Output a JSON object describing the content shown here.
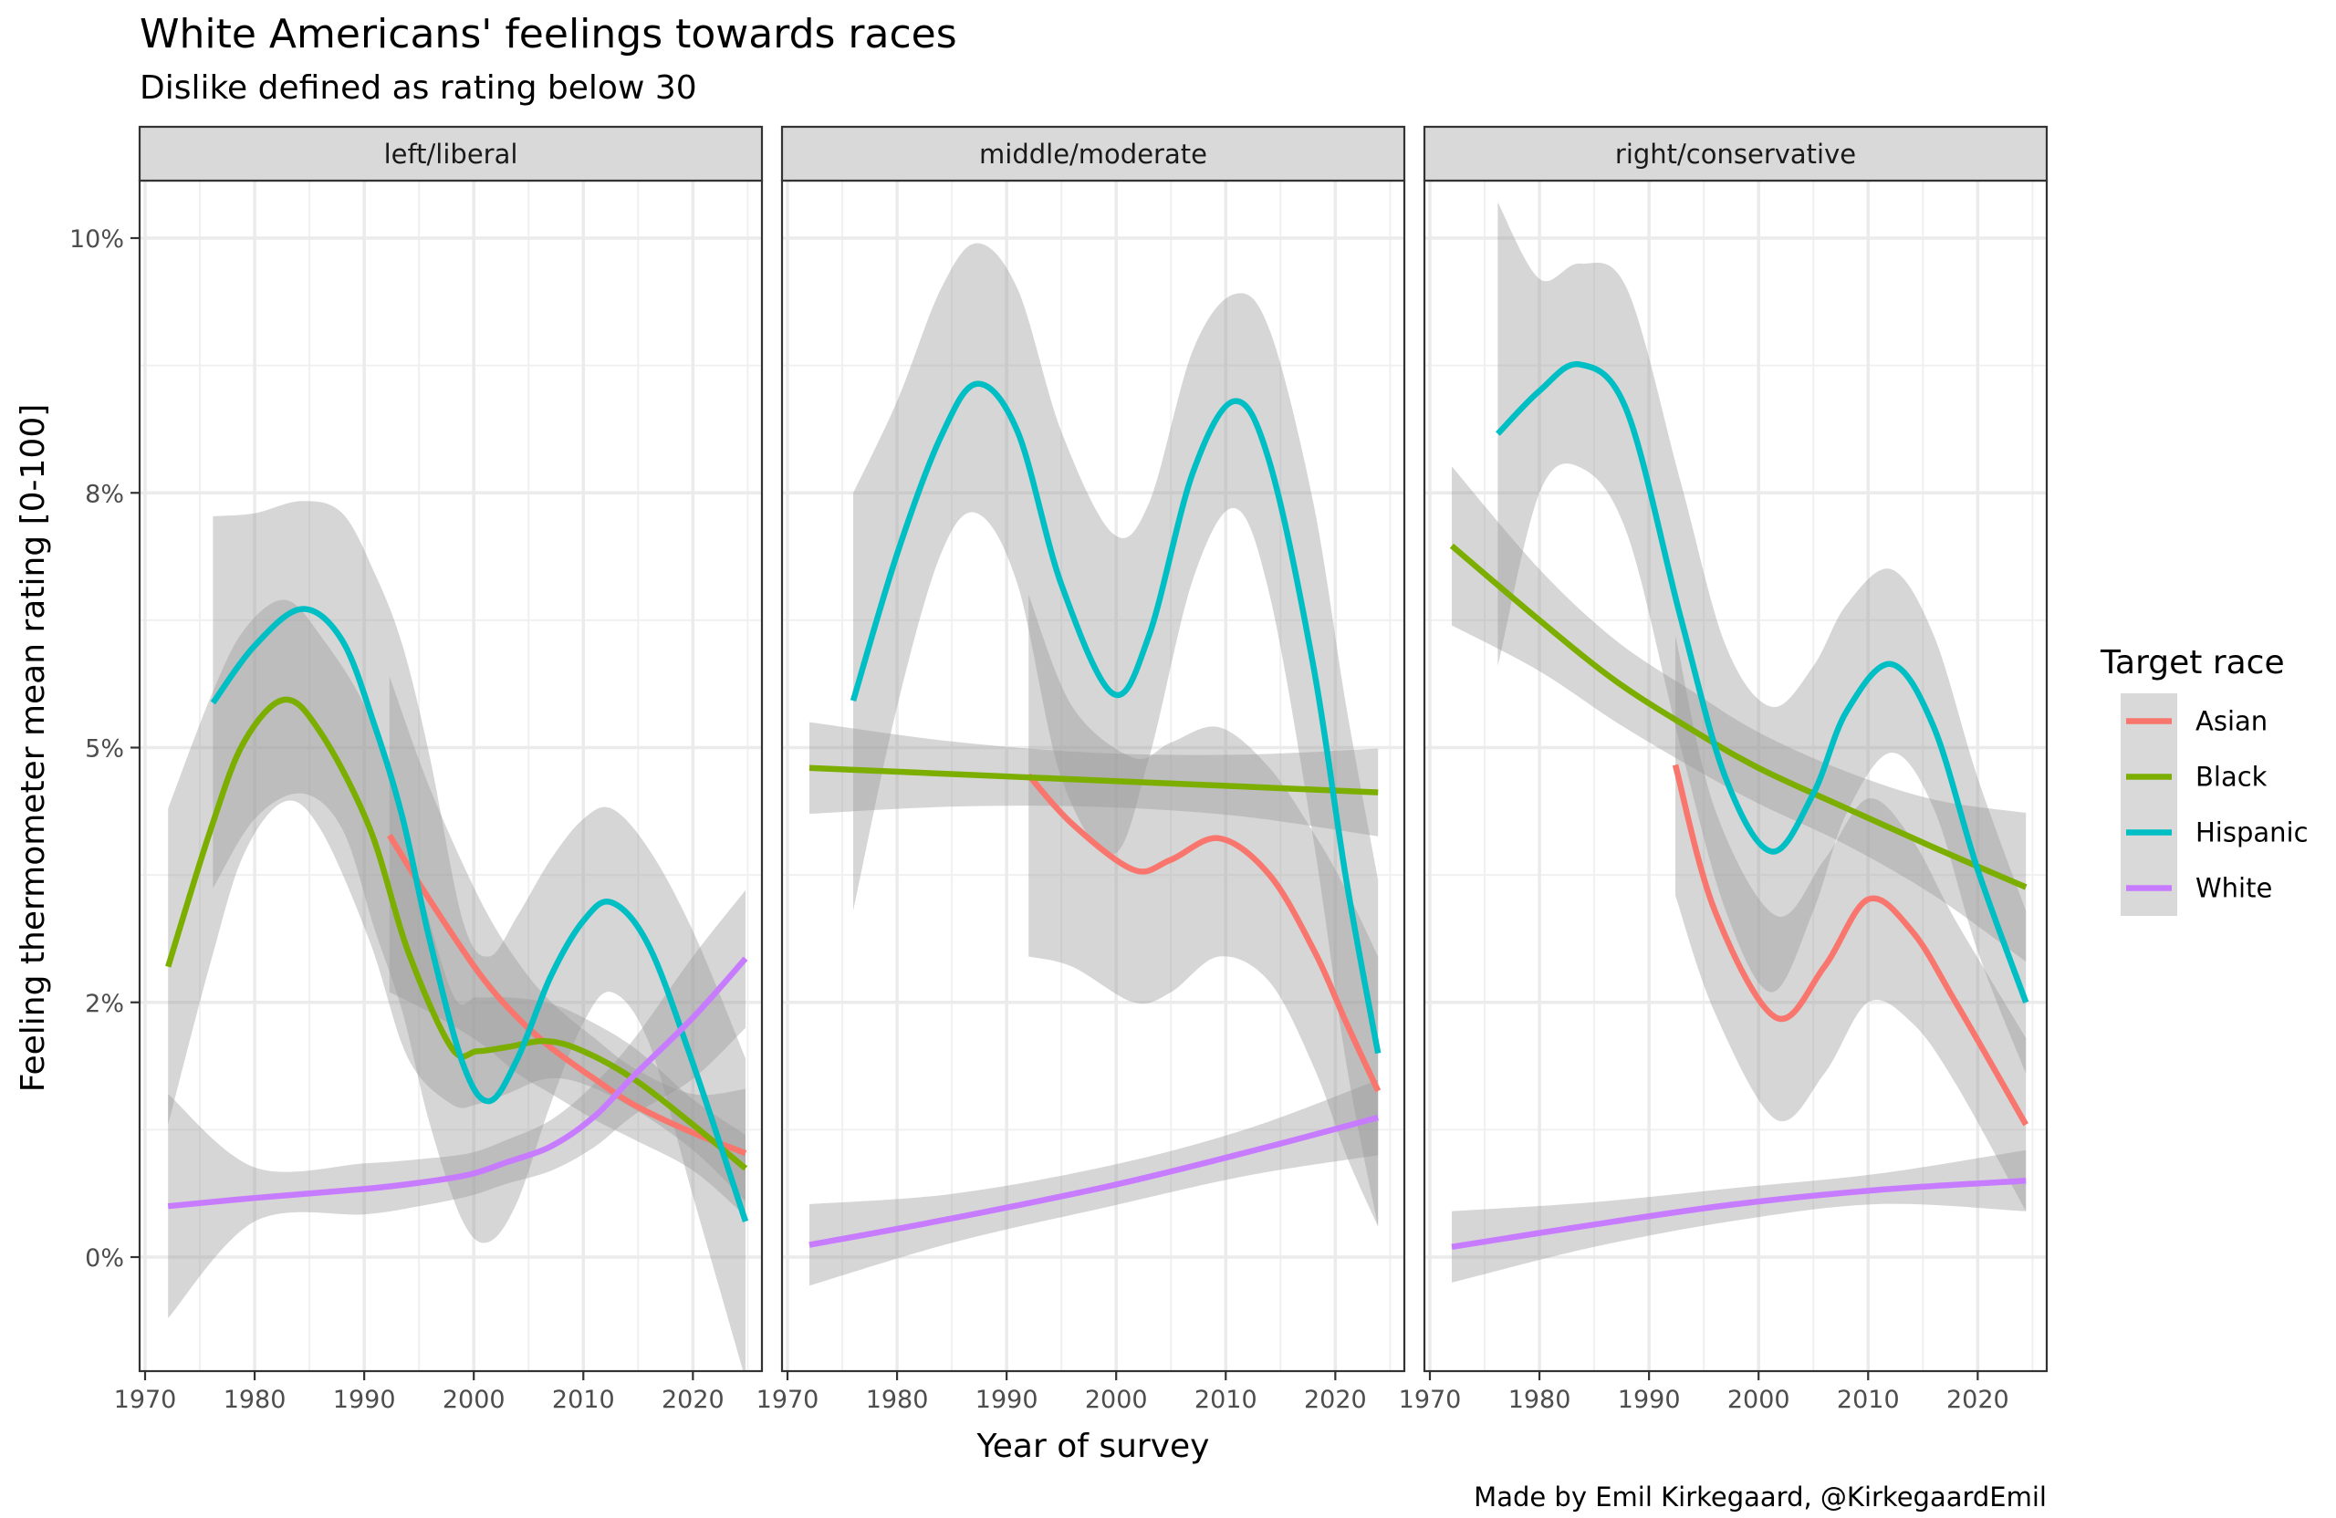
{
  "chart_data": {
    "type": "line",
    "title": "White Americans' feelings towards races",
    "subtitle": "Dislike defined as rating below 30",
    "xlabel": "Year of survey",
    "ylabel": "Feeling thermometer mean rating [0-100]",
    "caption": "Made by Emil Kirkegaard, @KirkegaardEmil",
    "xlim": [
      1969.5,
      2026.3
    ],
    "ylim": [
      -1.0,
      10.6
    ],
    "x_ticks": [
      1970,
      1980,
      1990,
      2000,
      2010,
      2020
    ],
    "x_tick_labels": [
      "1970",
      "1980",
      "1990",
      "2000",
      "2010",
      "2020"
    ],
    "y_ticks": [
      0,
      2.5,
      5,
      7.5,
      10
    ],
    "y_tick_labels": [
      "0%",
      "2%",
      "5%",
      "8%",
      "10%"
    ],
    "grid": true,
    "legend": {
      "title": "Target race",
      "position": "right",
      "entries": [
        {
          "name": "Asian",
          "color": "#F8766D"
        },
        {
          "name": "Black",
          "color": "#7CAE00"
        },
        {
          "name": "Hispanic",
          "color": "#00BFC4"
        },
        {
          "name": "White",
          "color": "#C77CFF"
        }
      ]
    },
    "ribbon_color": "#999999",
    "panels": [
      {
        "label": "left/liberal",
        "series": [
          {
            "name": "Asian",
            "x": [
              1992.3,
              1996,
              2000.6,
              2004,
              2007.1,
              2011,
              2014.7,
              2020,
              2024.8
            ],
            "y": [
              4.14,
              3.5,
              2.77,
              2.35,
              2.05,
              1.75,
              1.49,
              1.22,
              1.02
            ],
            "lower": [
              2.6,
              2.4,
              2.1,
              1.8,
              1.6,
              1.35,
              1.15,
              0.85,
              0.4
            ],
            "upper": [
              5.7,
              4.6,
              3.5,
              2.9,
              2.5,
              2.15,
              1.85,
              1.6,
              1.65
            ]
          },
          {
            "name": "Black",
            "x": [
              1972.1,
              1976,
              1979,
              1982.7,
              1986,
              1990.5,
              1994,
              1998,
              2000.3,
              2003,
              2006.6,
              2010,
              2014.7,
              2020,
              2024.8
            ],
            "y": [
              2.85,
              4.2,
              5.05,
              5.47,
              5.15,
              4.21,
              3.0,
              2.05,
              2.02,
              2.06,
              2.12,
              2.02,
              1.74,
              1.3,
              0.87
            ],
            "lower": [
              1.3,
              2.9,
              3.95,
              4.47,
              4.2,
              3.1,
              1.95,
              1.5,
              1.5,
              1.6,
              1.75,
              1.7,
              1.45,
              1.05,
              0.55
            ],
            "upper": [
              4.4,
              5.5,
              6.15,
              6.45,
              6.1,
              5.3,
              4.05,
              2.6,
              2.55,
              2.55,
              2.5,
              2.35,
              2.05,
              1.55,
              1.2
            ]
          },
          {
            "name": "Hispanic",
            "x": [
              1976.2,
              1980,
              1984.3,
              1988,
              1991,
              1993.5,
              1996,
              1999,
              2001.4,
              2004,
              2007,
              2010,
              2012.6,
              2016,
              2020,
              2024.8
            ],
            "y": [
              5.44,
              6.0,
              6.36,
              6.05,
              5.2,
              4.31,
              3.1,
              1.9,
              1.53,
              1.95,
              2.75,
              3.3,
              3.48,
              3.05,
              1.9,
              0.35
            ],
            "lower": [
              3.62,
              4.3,
              4.55,
              4.2,
              3.2,
              2.4,
              1.3,
              0.35,
              0.15,
              0.55,
              1.5,
              2.3,
              2.6,
              2.1,
              0.6,
              -1.2
            ],
            "upper": [
              7.27,
              7.3,
              7.42,
              7.3,
              6.7,
              6.0,
              4.9,
              3.3,
              2.95,
              3.35,
              3.9,
              4.3,
              4.4,
              4.0,
              3.2,
              1.95
            ]
          },
          {
            "name": "White",
            "x": [
              1972.1,
              1980,
              1990.1,
              1995,
              1999.6,
              2003,
              2007.1,
              2011,
              2014.7,
              2020,
              2024.8
            ],
            "y": [
              0.5,
              0.58,
              0.67,
              0.73,
              0.81,
              0.93,
              1.09,
              1.38,
              1.79,
              2.35,
              2.93
            ],
            "lower": [
              -0.6,
              0.35,
              0.42,
              0.5,
              0.6,
              0.72,
              0.85,
              1.08,
              1.4,
              1.75,
              2.25
            ],
            "upper": [
              1.6,
              0.88,
              0.92,
              0.96,
              1.02,
              1.15,
              1.35,
              1.7,
              2.15,
              2.95,
              3.6
            ]
          }
        ]
      },
      {
        "label": "middle/moderate",
        "series": [
          {
            "name": "Asian",
            "x": [
              1992.0,
              1996,
              2001.6,
              2005,
              2009.4,
              2014,
              2018.1,
              2021,
              2023.9
            ],
            "y": [
              4.73,
              4.25,
              3.8,
              3.9,
              4.11,
              3.75,
              3.0,
              2.3,
              1.63
            ],
            "lower": [
              2.95,
              2.85,
              2.5,
              2.6,
              2.95,
              2.7,
              1.85,
              1.0,
              0.3
            ],
            "upper": [
              6.5,
              5.4,
              4.9,
              5.05,
              5.2,
              4.8,
              4.15,
              3.6,
              2.95
            ]
          },
          {
            "name": "Black",
            "x": [
              1972.0,
              1985,
              1998,
              2011,
              2023.9
            ],
            "y": [
              4.8,
              4.74,
              4.68,
              4.62,
              4.56
            ],
            "lower": [
              4.35,
              4.42,
              4.42,
              4.33,
              4.13
            ],
            "upper": [
              5.25,
              5.06,
              4.95,
              4.93,
              4.99
            ]
          },
          {
            "name": "Hispanic",
            "x": [
              1976.0,
              1980,
              1984,
              1987.3,
              1991,
              1995,
              1999.7,
              2003,
              2007,
              2010.8,
              2014,
              2018,
              2021,
              2023.9
            ],
            "y": [
              5.46,
              6.9,
              8.05,
              8.57,
              8.1,
              6.6,
              5.53,
              6.1,
              7.7,
              8.4,
              7.8,
              5.8,
              3.7,
              2.0
            ],
            "lower": [
              3.4,
              5.4,
              6.9,
              7.3,
              6.6,
              4.7,
              3.95,
              4.9,
              6.65,
              7.35,
              6.5,
              4.1,
              1.9,
              0.3
            ],
            "upper": [
              7.5,
              8.4,
              9.5,
              9.95,
              9.5,
              8.1,
              7.1,
              7.4,
              8.9,
              9.45,
              9.1,
              7.4,
              5.4,
              3.7
            ]
          },
          {
            "name": "White",
            "x": [
              1972.0,
              1985,
              1999.5,
              2012,
              2023.9
            ],
            "y": [
              0.12,
              0.38,
              0.7,
              1.03,
              1.37
            ],
            "lower": [
              -0.28,
              0.14,
              0.5,
              0.8,
              1.0
            ],
            "upper": [
              0.52,
              0.62,
              0.9,
              1.26,
              1.74
            ]
          }
        ]
      },
      {
        "label": "right/conservative",
        "series": [
          {
            "name": "Asian",
            "x": [
              1992.4,
              1996,
              2001.6,
              2006,
              2010,
              2014,
              2018,
              2024.4
            ],
            "y": [
              4.83,
              3.4,
              2.35,
              2.85,
              3.51,
              3.2,
              2.5,
              1.3
            ],
            "lower": [
              3.55,
              2.4,
              1.35,
              1.8,
              2.5,
              2.3,
              1.7,
              0.45
            ],
            "upper": [
              6.1,
              4.4,
              3.35,
              3.9,
              4.5,
              4.1,
              3.3,
              2.15
            ]
          },
          {
            "name": "Black",
            "x": [
              1972.0,
              1980,
              1987,
              1994.0,
              2000,
              2007.9,
              2016,
              2024.4
            ],
            "y": [
              6.98,
              6.25,
              5.65,
              5.17,
              4.8,
              4.41,
              4.02,
              3.63
            ],
            "lower": [
              6.2,
              5.75,
              5.25,
              4.8,
              4.45,
              4.05,
              3.55,
              2.9
            ],
            "upper": [
              7.76,
              6.75,
              6.05,
              5.55,
              5.15,
              4.77,
              4.49,
              4.36
            ]
          },
          {
            "name": "Hispanic",
            "x": [
              1976.2,
              1980,
              1983.7,
              1988,
              1992.9,
              1997,
              2001.2,
              2005,
              2008,
              2012.1,
              2016,
              2020,
              2024.4
            ],
            "y": [
              8.08,
              8.5,
              8.76,
              8.3,
              6.27,
              4.7,
              3.98,
              4.55,
              5.35,
              5.82,
              5.2,
              3.8,
              2.5
            ],
            "lower": [
              5.8,
              7.5,
              7.75,
              7.1,
              5.0,
              3.4,
              2.6,
              3.4,
              4.35,
              4.95,
              4.4,
              3.0,
              1.8
            ],
            "upper": [
              10.35,
              9.6,
              9.75,
              9.5,
              7.6,
              6.0,
              5.4,
              5.8,
              6.4,
              6.75,
              6.1,
              4.7,
              3.4
            ]
          },
          {
            "name": "White",
            "x": [
              1972.0,
              1985,
              1998,
              2011,
              2024.4
            ],
            "y": [
              0.1,
              0.32,
              0.52,
              0.66,
              0.75
            ],
            "lower": [
              -0.25,
              0.1,
              0.36,
              0.52,
              0.45
            ],
            "upper": [
              0.45,
              0.54,
              0.68,
              0.82,
              1.05
            ]
          }
        ]
      }
    ]
  }
}
